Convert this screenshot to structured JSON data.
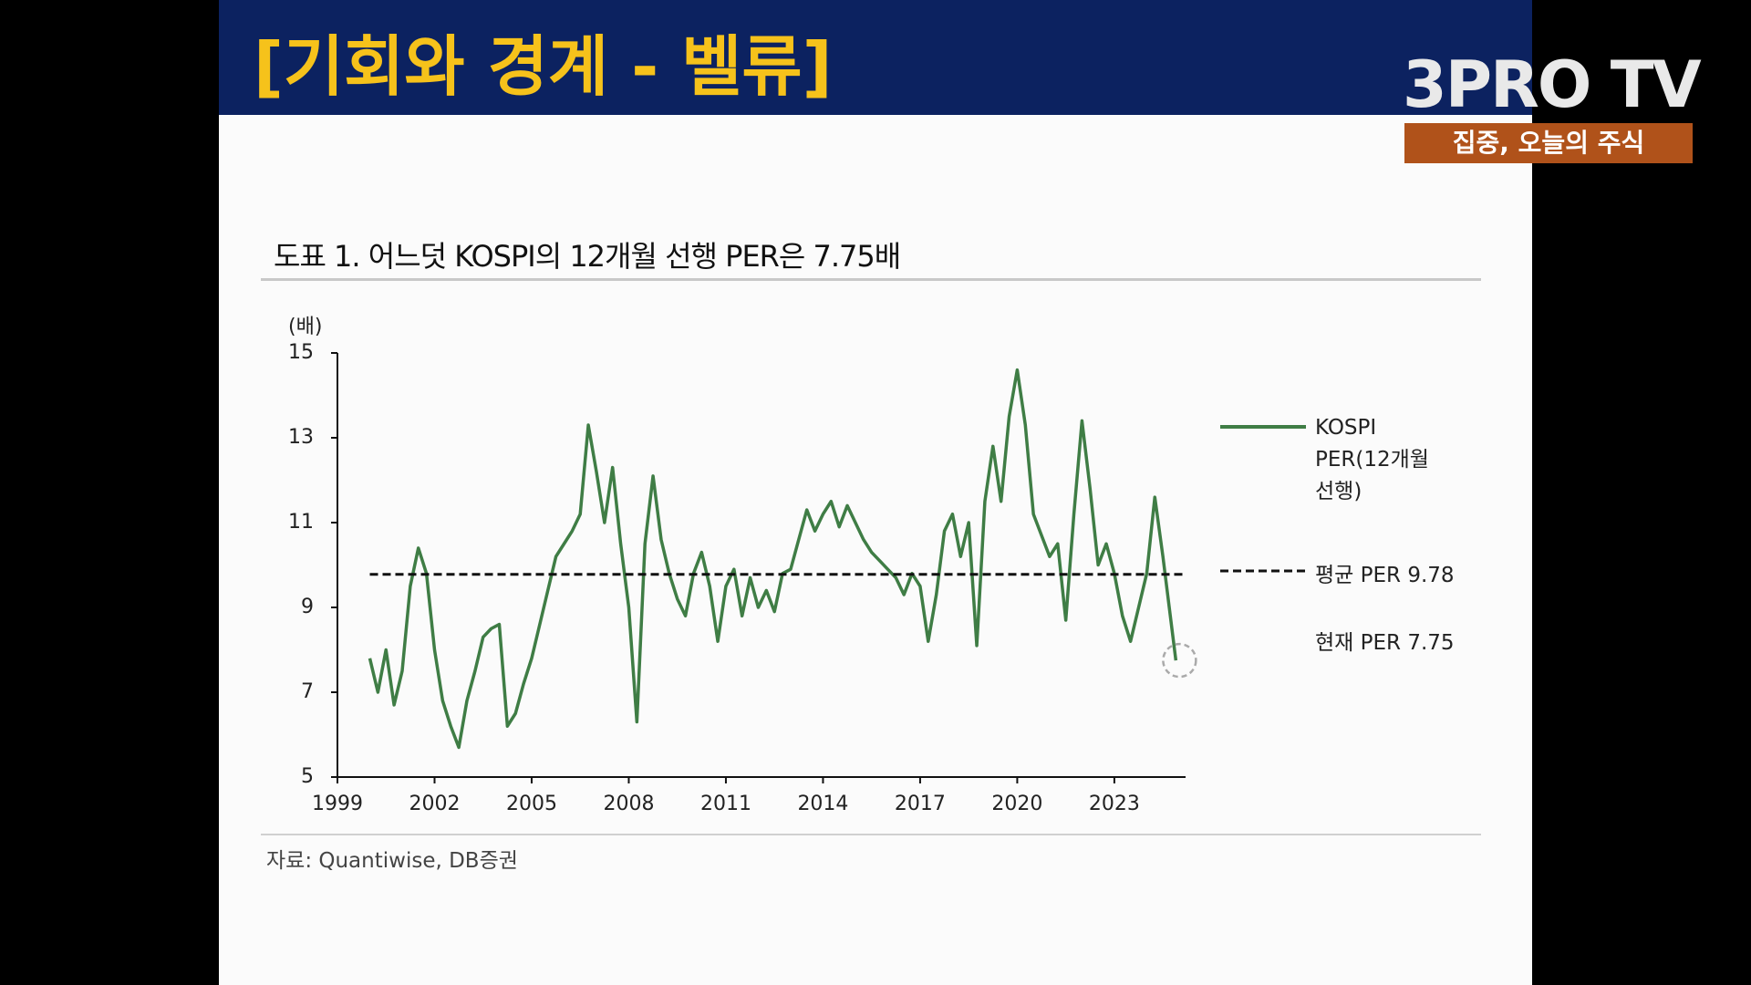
{
  "header": {
    "title": "[기회와 경계 - 벨류]",
    "logo": "3PRO TV",
    "tagline": "집중, 오늘의 주식"
  },
  "chart_data": {
    "type": "line",
    "title": "도표 1. 어느덧 KOSPI의 12개월 선행 PER은 7.75배",
    "y_label": "(배)",
    "source": "자료: Quantiwise, DB증권",
    "x": [
      2000.0,
      2000.25,
      2000.5,
      2000.75,
      2001.0,
      2001.25,
      2001.5,
      2001.75,
      2002.0,
      2002.25,
      2002.5,
      2002.75,
      2003.0,
      2003.25,
      2003.5,
      2003.75,
      2004.0,
      2004.25,
      2004.5,
      2004.75,
      2005.0,
      2005.25,
      2005.5,
      2005.75,
      2006.0,
      2006.25,
      2006.5,
      2006.75,
      2007.0,
      2007.25,
      2007.5,
      2007.75,
      2008.0,
      2008.25,
      2008.5,
      2008.75,
      2009.0,
      2009.25,
      2009.5,
      2009.75,
      2010.0,
      2010.25,
      2010.5,
      2010.75,
      2011.0,
      2011.25,
      2011.5,
      2011.75,
      2012.0,
      2012.25,
      2012.5,
      2012.75,
      2013.0,
      2013.25,
      2013.5,
      2013.75,
      2014.0,
      2014.25,
      2014.5,
      2014.75,
      2015.0,
      2015.25,
      2015.5,
      2015.75,
      2016.0,
      2016.25,
      2016.5,
      2016.75,
      2017.0,
      2017.25,
      2017.5,
      2017.75,
      2018.0,
      2018.25,
      2018.5,
      2018.75,
      2019.0,
      2019.25,
      2019.5,
      2019.75,
      2020.0,
      2020.25,
      2020.5,
      2020.75,
      2021.0,
      2021.25,
      2021.5,
      2021.75,
      2022.0,
      2022.25,
      2022.5,
      2022.75,
      2023.0,
      2023.25,
      2023.5,
      2023.75,
      2024.0,
      2024.25,
      2024.5,
      2024.9
    ],
    "series": [
      {
        "name": "KOSPI PER(12개월 선행)",
        "color": "#3f7d45",
        "values": [
          7.8,
          7.0,
          8.0,
          6.7,
          7.5,
          9.5,
          10.4,
          9.8,
          8.0,
          6.8,
          6.2,
          5.7,
          6.8,
          7.5,
          8.3,
          8.5,
          8.6,
          6.2,
          6.5,
          7.2,
          7.8,
          8.6,
          9.4,
          10.2,
          10.5,
          10.8,
          11.2,
          13.3,
          12.2,
          11.0,
          12.3,
          10.5,
          9.0,
          6.3,
          10.5,
          12.1,
          10.6,
          9.8,
          9.2,
          8.8,
          9.8,
          10.3,
          9.5,
          8.2,
          9.5,
          9.9,
          8.8,
          9.7,
          9.0,
          9.4,
          8.9,
          9.8,
          9.9,
          10.6,
          11.3,
          10.8,
          11.2,
          11.5,
          10.9,
          11.4,
          11.0,
          10.6,
          10.3,
          10.1,
          9.9,
          9.7,
          9.3,
          9.8,
          9.5,
          8.2,
          9.3,
          10.8,
          11.2,
          10.2,
          11.0,
          8.1,
          11.5,
          12.8,
          11.5,
          13.5,
          14.6,
          13.3,
          11.2,
          10.7,
          10.2,
          10.5,
          8.7,
          11.2,
          13.4,
          11.8,
          10.0,
          10.5,
          9.8,
          8.8,
          8.2,
          9.0,
          9.8,
          11.6,
          10.2,
          7.75
        ]
      }
    ],
    "mean_line": {
      "label": "평균 PER 9.78",
      "value": 9.78
    },
    "current": {
      "label": "현재 PER 7.75",
      "value": 7.75
    },
    "xlim": [
      1999,
      2025.2
    ],
    "xticks": [
      1999,
      2002,
      2005,
      2008,
      2011,
      2014,
      2017,
      2020,
      2023
    ],
    "ylim": [
      5,
      15
    ],
    "yticks": [
      5,
      7,
      9,
      11,
      13,
      15
    ],
    "grid": false
  }
}
